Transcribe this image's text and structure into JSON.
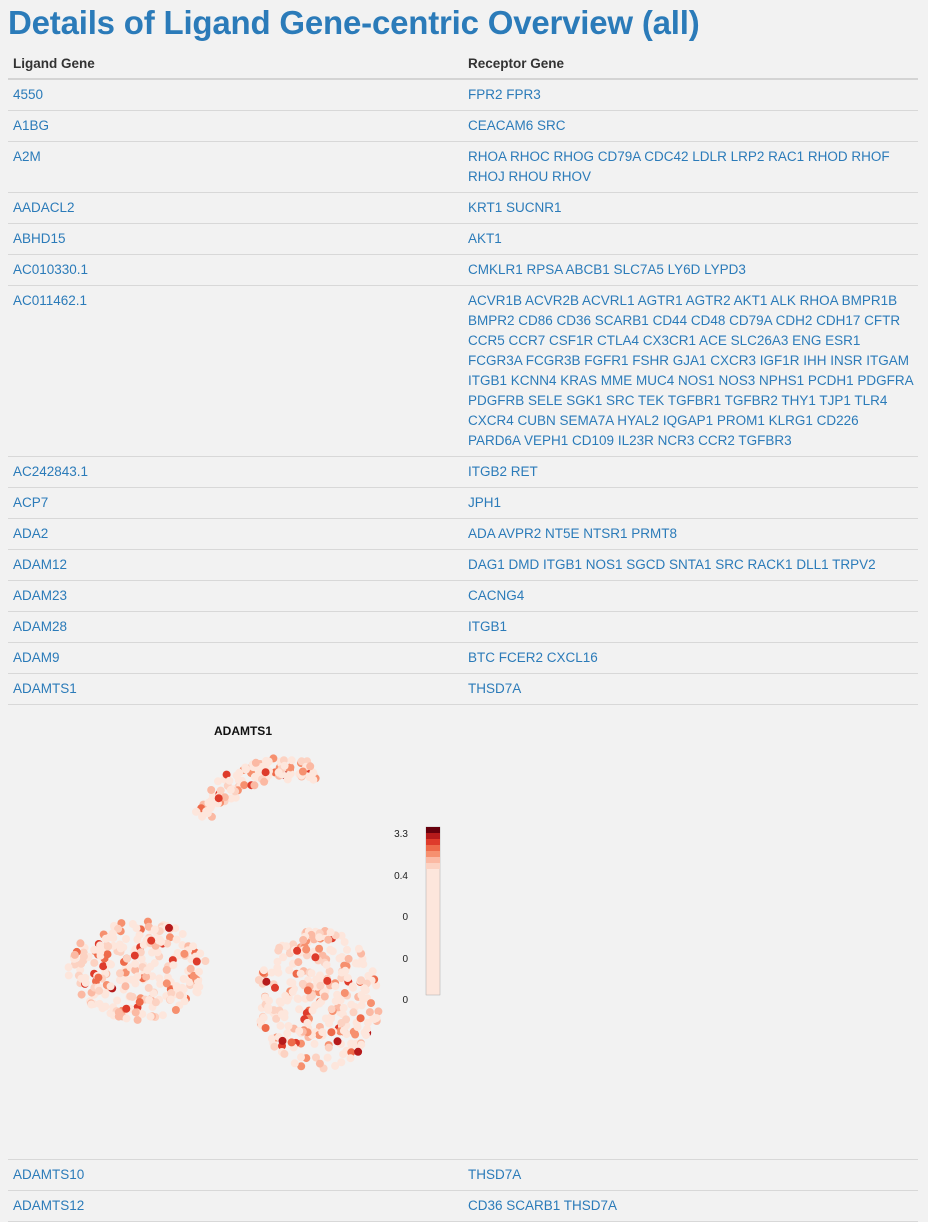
{
  "page": {
    "title": "Details of Ligand Gene-centric Overview (all)"
  },
  "table": {
    "headers": {
      "ligand": "Ligand Gene",
      "receptor": "Receptor Gene"
    },
    "rows": [
      {
        "ligand": "4550",
        "receptor": "FPR2 FPR3"
      },
      {
        "ligand": "A1BG",
        "receptor": "CEACAM6 SRC"
      },
      {
        "ligand": "A2M",
        "receptor": "RHOA RHOC RHOG CD79A CDC42 LDLR LRP2 RAC1 RHOD RHOF RHOJ RHOU RHOV"
      },
      {
        "ligand": "AADACL2",
        "receptor": "KRT1 SUCNR1"
      },
      {
        "ligand": "ABHD15",
        "receptor": "AKT1"
      },
      {
        "ligand": "AC010330.1",
        "receptor": "CMKLR1 RPSA ABCB1 SLC7A5 LY6D LYPD3"
      },
      {
        "ligand": "AC011462.1",
        "receptor": "ACVR1B ACVR2B ACVRL1 AGTR1 AGTR2 AKT1 ALK RHOA BMPR1B BMPR2 CD86 CD36 SCARB1 CD44 CD48 CD79A CDH2 CDH17 CFTR CCR5 CCR7 CSF1R CTLA4 CX3CR1 ACE SLC26A3 ENG ESR1 FCGR3A FCGR3B FGFR1 FSHR GJA1 CXCR3 IGF1R IHH INSR ITGAM ITGB1 KCNN4 KRAS MME MUC4 NOS1 NOS3 NPHS1 PCDH1 PDGFRA PDGFRB SELE SGK1 SRC TEK TGFBR1 TGFBR2 THY1 TJP1 TLR4 CXCR4 CUBN SEMA7A HYAL2 IQGAP1 PROM1 KLRG1 CD226 PARD6A VEPH1 CD109 IL23R NCR3 CCR2 TGFBR3"
      },
      {
        "ligand": "AC242843.1",
        "receptor": "ITGB2 RET"
      },
      {
        "ligand": "ACP7",
        "receptor": "JPH1"
      },
      {
        "ligand": "ADA2",
        "receptor": "ADA AVPR2 NT5E NTSR1 PRMT8"
      },
      {
        "ligand": "ADAM12",
        "receptor": "DAG1 DMD ITGB1 NOS1 SGCD SNTA1 SRC RACK1 DLL1 TRPV2"
      },
      {
        "ligand": "ADAM23",
        "receptor": "CACNG4"
      },
      {
        "ligand": "ADAM28",
        "receptor": "ITGB1"
      },
      {
        "ligand": "ADAM9",
        "receptor": "BTC FCER2 CXCL16"
      },
      {
        "ligand": "ADAMTS1",
        "receptor": "THSD7A"
      }
    ],
    "rows_after": [
      {
        "ligand": "ADAMTS10",
        "receptor": "THSD7A"
      },
      {
        "ligand": "ADAMTS12",
        "receptor": "CD36 SCARB1 THSD7A"
      }
    ]
  },
  "chart_data": {
    "type": "scatter",
    "title": "ADAMTS1",
    "xlabel": "",
    "ylabel": "",
    "colorbar": {
      "labels": [
        "3.3",
        "0.4",
        "0",
        "0",
        "0"
      ],
      "colors": [
        "#fde6dc",
        "#fcd2c2",
        "#fbb9a3",
        "#f6906f",
        "#ee6a4a",
        "#de3b2b",
        "#b51a1b",
        "#67000d"
      ]
    },
    "clusters": [
      {
        "name": "",
        "center": [
          245,
          70
        ],
        "radius": [
          55,
          36
        ],
        "n": 120
      },
      {
        "name": "",
        "center": [
          130,
          265
        ],
        "radius": [
          70,
          50
        ],
        "n": 260
      },
      {
        "name": "",
        "center": [
          310,
          295
        ],
        "radius": [
          62,
          70
        ],
        "n": 300
      }
    ]
  }
}
